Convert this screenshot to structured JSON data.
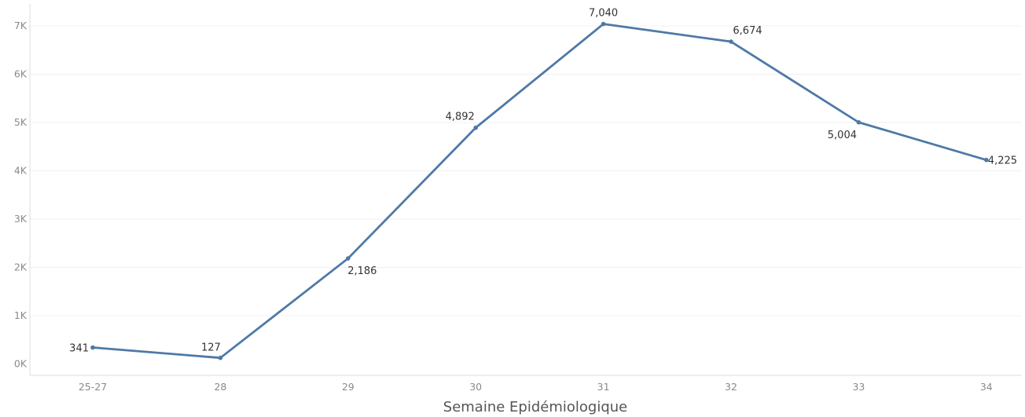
{
  "chart_data": {
    "type": "line",
    "categories": [
      "25-27",
      "28",
      "29",
      "30",
      "31",
      "32",
      "33",
      "34"
    ],
    "series": [
      {
        "values": [
          341,
          127,
          2186,
          4892,
          7040,
          6674,
          5004,
          4225
        ],
        "data_labels": [
          "341",
          "127",
          "2,186",
          "4,892",
          "7,040",
          "6,674",
          "5,004",
          "4,225"
        ],
        "color": "#4e79a7"
      }
    ],
    "y_ticks": [
      0,
      1000,
      2000,
      3000,
      4000,
      5000,
      6000,
      7000
    ],
    "y_tick_labels": [
      "0K",
      "1K",
      "2K",
      "3K",
      "4K",
      "5K",
      "6K",
      "7K"
    ],
    "ylim": [
      -150,
      7400
    ],
    "xlabel": "Semaine Epidémiologique",
    "ylabel": "",
    "title": "",
    "grid": true,
    "legend": false
  }
}
